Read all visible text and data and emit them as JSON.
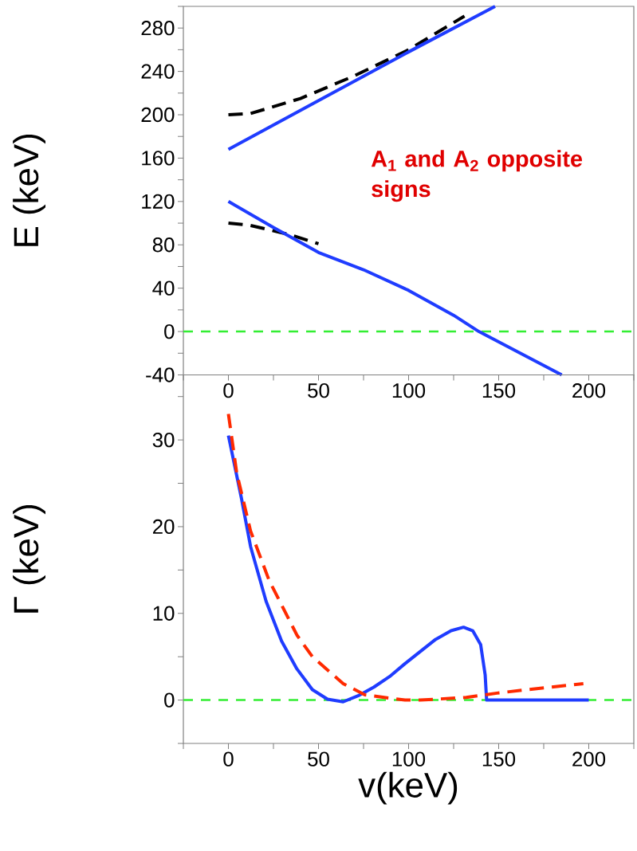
{
  "chart_data": [
    {
      "type": "line",
      "ylabel": "E (keV)",
      "xlim": [
        -25,
        225
      ],
      "ylim": [
        -40,
        300
      ],
      "xticks": [
        {
          "value": -25,
          "label": null
        },
        0,
        {
          "value": 25,
          "label": null
        },
        50,
        {
          "value": 75,
          "label": null
        },
        100,
        {
          "value": 125,
          "label": null
        },
        150,
        {
          "value": 175,
          "label": null
        },
        200,
        {
          "value": 225,
          "label": null
        }
      ],
      "yticks": [
        -40,
        {
          "value": -20,
          "label": null
        },
        0,
        {
          "value": 20,
          "label": null
        },
        40,
        {
          "value": 60,
          "label": null
        },
        80,
        {
          "value": 100,
          "label": null
        },
        120,
        {
          "value": 140,
          "label": null
        },
        160,
        {
          "value": 180,
          "label": null
        },
        200,
        {
          "value": 220,
          "label": null
        },
        240,
        {
          "value": 260,
          "label": null
        },
        280,
        {
          "value": 300,
          "label": null
        }
      ],
      "series": [
        {
          "color": "#000000",
          "line_style": "dashed",
          "x": [
            0,
            12,
            40,
            70,
            100,
            131
          ],
          "values": [
            200,
            201,
            215,
            236,
            260,
            291
          ]
        },
        {
          "color": "#000000",
          "line_style": "dashed",
          "x": [
            0,
            12,
            35,
            50
          ],
          "values": [
            100,
            98,
            89,
            81
          ]
        },
        {
          "color": "#1f3cff",
          "line_style": "solid",
          "x": [
            0,
            50,
            100,
            148
          ],
          "values": [
            168,
            213,
            258,
            300
          ]
        },
        {
          "color": "#1f3cff",
          "line_style": "solid",
          "x": [
            0,
            25,
            50,
            75,
            100,
            125,
            139,
            162,
            185
          ],
          "values": [
            120,
            96,
            73,
            57,
            38,
            15,
            0,
            -20,
            -40
          ]
        }
      ],
      "ref_lines": [
        {
          "axis": "y",
          "value": 0,
          "color": "#33ee33",
          "line_style": "dashed"
        }
      ],
      "annotations": [
        "A$_{1}$ and A$_{2}$ opposite signs"
      ]
    },
    {
      "type": "line",
      "xlabel": "v(keV)",
      "ylabel": "Γ (keV)",
      "xlim": [
        -25,
        225
      ],
      "ylim": [
        -5,
        37.5
      ],
      "xticks": [
        {
          "value": -25,
          "label": null
        },
        0,
        {
          "value": 25,
          "label": null
        },
        50,
        {
          "value": 75,
          "label": null
        },
        100,
        {
          "value": 125,
          "label": null
        },
        150,
        {
          "value": 175,
          "label": null
        },
        200,
        {
          "value": 225,
          "label": null
        }
      ],
      "yticks": [
        {
          "value": -5,
          "label": null
        },
        0,
        {
          "value": 5,
          "label": null
        },
        10,
        {
          "value": 15,
          "label": null
        },
        20,
        {
          "value": 25,
          "label": null
        },
        30,
        {
          "value": 35,
          "label": null
        }
      ],
      "series": [
        {
          "color": "#1f3cff",
          "line_style": "solid",
          "x": [
            0,
            7.2,
            12.3,
            20.9,
            29.5,
            38,
            46.6,
            55,
            63.7,
            72,
            80.8,
            89.4,
            98,
            106.5,
            115,
            123.6,
            130.5,
            135.6,
            140,
            142.5,
            143.3,
            200
          ],
          "values": [
            30.5,
            23.3,
            17.7,
            11.4,
            6.8,
            3.6,
            1.2,
            0.1,
            -0.2,
            0.5,
            1.5,
            2.7,
            4.2,
            5.6,
            7,
            8,
            8.4,
            8,
            6.4,
            2.9,
            0,
            0
          ]
        },
        {
          "color": "#ff2a00",
          "line_style": "dashed",
          "x": [
            0,
            4.6,
            12.3,
            22.6,
            38,
            46.6,
            63.7,
            75.7,
            98,
            106.5,
            132,
            149,
            166,
            197
          ],
          "values": [
            33,
            26.2,
            19.5,
            13.8,
            7.5,
            5,
            1.9,
            0.6,
            0,
            0,
            0.3,
            0.8,
            1.2,
            1.9
          ]
        }
      ],
      "ref_lines": [
        {
          "axis": "y",
          "value": 0,
          "color": "#33ee33",
          "line_style": "dashed"
        }
      ]
    }
  ]
}
